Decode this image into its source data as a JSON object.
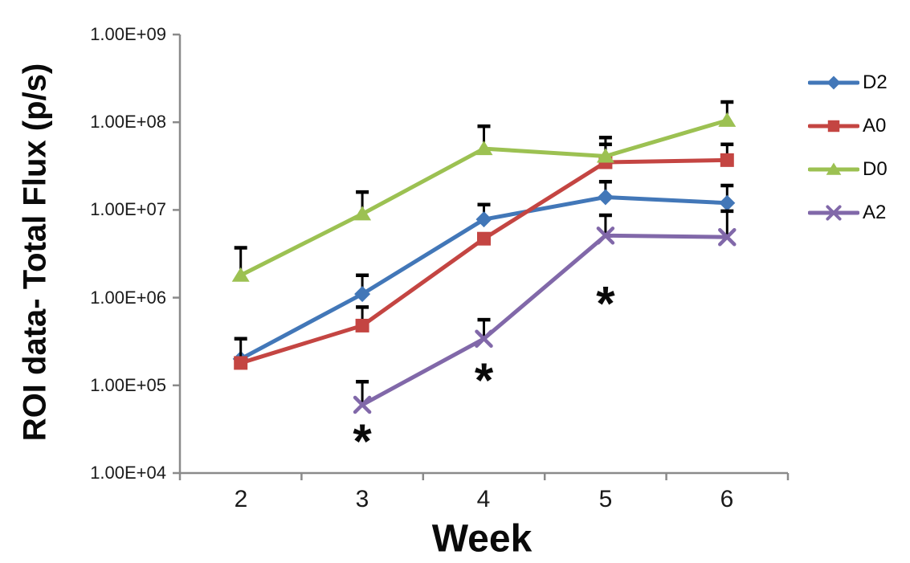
{
  "chart_data": {
    "type": "line",
    "title": "",
    "xlabel": "Week",
    "ylabel": "ROI data- Total Flux (p/s)",
    "y_scale": "log10",
    "ylim": [
      10000.0,
      1000000000.0
    ],
    "grid": false,
    "legend_position": "right",
    "y_tick_labels": [
      "1.00E+09",
      "1.00E+08",
      "1.00E+07",
      "1.00E+06",
      "1.00E+05",
      "1.00E+04"
    ],
    "x_categories": [
      "2",
      "3",
      "4",
      "5",
      "6"
    ],
    "series": [
      {
        "name": "D2",
        "marker": "diamond",
        "color": "#4277b8",
        "values": [
          200000.0,
          1100000.0,
          7800000.0,
          14000000.0,
          12000000.0
        ],
        "error_upper": [
          null,
          1800000.0,
          11500000.0,
          21000000.0,
          19000000.0
        ]
      },
      {
        "name": "A0",
        "marker": "square",
        "color": "#c44542",
        "values": [
          180000.0,
          480000.0,
          4700000.0,
          35000000.0,
          37000000.0
        ],
        "error_upper": [
          340000.0,
          780000.0,
          null,
          56000000.0,
          56000000.0
        ]
      },
      {
        "name": "D0",
        "marker": "triangle",
        "color": "#9cc152",
        "values": [
          1800000.0,
          9000000.0,
          50000000.0,
          41000000.0,
          105000000.0
        ],
        "error_upper": [
          3700000.0,
          16000000.0,
          90000000.0,
          67000000.0,
          170000000.0
        ]
      },
      {
        "name": "A2",
        "marker": "x-cross",
        "color": "#8168a9",
        "values": [
          null,
          60000.0,
          340000.0,
          5100000.0,
          4900000.0
        ],
        "error_upper": [
          null,
          110000.0,
          560000.0,
          8700000.0,
          9700000.0
        ]
      }
    ],
    "annotations": [
      {
        "symbol": "*",
        "week": "3",
        "at_value": 28000.0
      },
      {
        "symbol": "*",
        "week": "4",
        "at_value": 140000.0
      },
      {
        "symbol": "*",
        "week": "5",
        "at_value": 1050000.0
      }
    ],
    "colors": {
      "axis": "#8a8a8a",
      "error_bar": "#000000",
      "text": "#1a1a1a",
      "background": "#ffffff"
    }
  }
}
